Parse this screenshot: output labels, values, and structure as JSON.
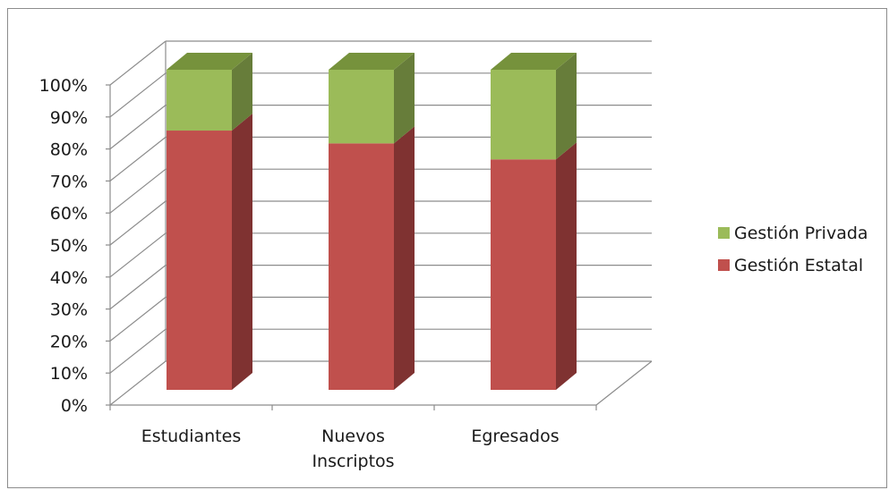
{
  "chart_data": {
    "type": "bar",
    "stacked": true,
    "percent": true,
    "three_d": true,
    "title": "",
    "xlabel": "",
    "ylabel": "",
    "ylim": [
      0,
      100
    ],
    "y_ticks": [
      "0%",
      "10%",
      "20%",
      "30%",
      "40%",
      "50%",
      "60%",
      "70%",
      "80%",
      "90%",
      "100%"
    ],
    "categories": [
      [
        "Estudiantes"
      ],
      [
        "Nuevos",
        "Inscriptos"
      ],
      [
        "Egresados"
      ]
    ],
    "series": [
      {
        "name": "Gestión Estatal",
        "values": [
          81,
          77,
          72
        ],
        "color": "#c0504d",
        "side_color": "#7f3231",
        "top_color": "#a8403d"
      },
      {
        "name": "Gestión Privada",
        "values": [
          19,
          23,
          28
        ],
        "color": "#9bbb59",
        "side_color": "#677d3a",
        "top_color": "#76923c"
      }
    ],
    "grid": true,
    "legend_position": "right",
    "legend_order": [
      "Gestión Privada",
      "Gestión Estatal"
    ]
  }
}
